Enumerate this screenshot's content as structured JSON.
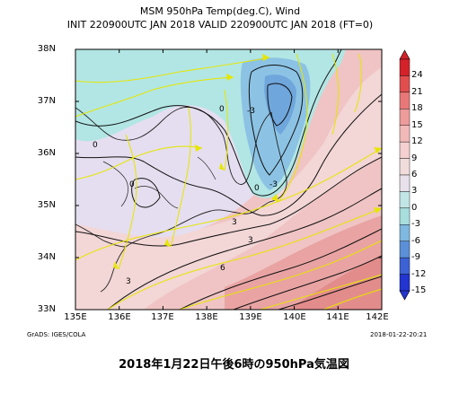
{
  "title": {
    "line1": "MSM 950hPa Temp(deg.C), Wind",
    "line2": "INIT 220900UTC JAN 2018    VALID 220900UTC JAN 2018  (FT=0)"
  },
  "map": {
    "lat_labels": [
      "38N",
      "37N",
      "36N",
      "35N",
      "34N",
      "33N"
    ],
    "lon_labels": [
      "135E",
      "136E",
      "137E",
      "138E",
      "139E",
      "140E",
      "141E",
      "142E"
    ],
    "contour_labels": [
      "0",
      "0",
      "0",
      "0",
      "3",
      "3",
      "6",
      "-3",
      "-3",
      "3"
    ]
  },
  "colorbar": {
    "labels": [
      "24",
      "21",
      "18",
      "15",
      "12",
      "9",
      "6",
      "3",
      "0",
      "-3",
      "-6",
      "-9",
      "-12",
      "-15"
    ],
    "colors": [
      "#d4222a",
      "#e04e4e",
      "#e87878",
      "#ee9b9b",
      "#f2b9b9",
      "#f4d0d0",
      "#f1dcdc",
      "#e8e0ea",
      "#c2e6e6",
      "#a8dede",
      "#7fb8e0",
      "#5b8fd8",
      "#3c62d4",
      "#2335d0"
    ]
  },
  "footer": {
    "left": "GrADS: IGES/COLA",
    "right": "2018-01-22-20:21"
  },
  "caption": "2018年1月22日午後6時の950hPa気温図"
}
